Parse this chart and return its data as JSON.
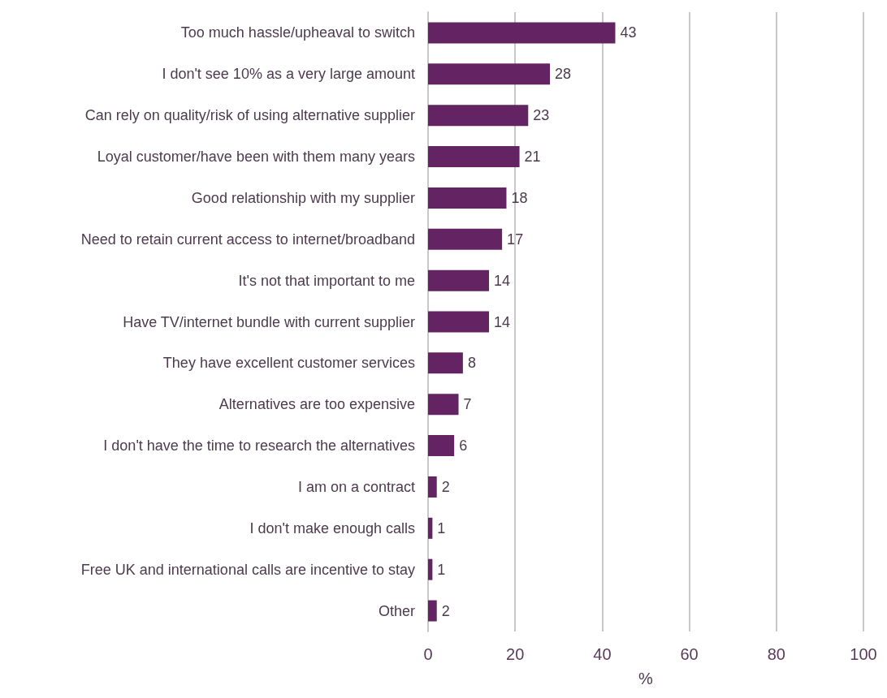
{
  "chart_data": {
    "type": "bar",
    "orientation": "horizontal",
    "xlabel": "%",
    "categories": [
      "Too much hassle/upheaval to switch",
      "I don't see 10% as a very large amount",
      "Can rely on quality/risk of using alternative supplier",
      "Loyal customer/have been with them many years",
      "Good relationship with my supplier",
      "Need to retain current access to internet/broadband",
      "It's not that important to me",
      "Have TV/internet bundle with current supplier",
      "They have excellent customer services",
      "Alternatives are too expensive",
      "I don't have the time to research the alternatives",
      "I am on a contract",
      "I don't make enough calls",
      "Free UK and international calls are incentive to stay",
      "Other"
    ],
    "values": [
      43,
      28,
      23,
      21,
      18,
      17,
      14,
      14,
      8,
      7,
      6,
      2,
      1,
      1,
      2
    ],
    "color": "#642463",
    "xlim": [
      0,
      100
    ],
    "xticks": [
      0,
      20,
      40,
      60,
      80,
      100
    ],
    "grid": "x",
    "data_labels": true
  }
}
